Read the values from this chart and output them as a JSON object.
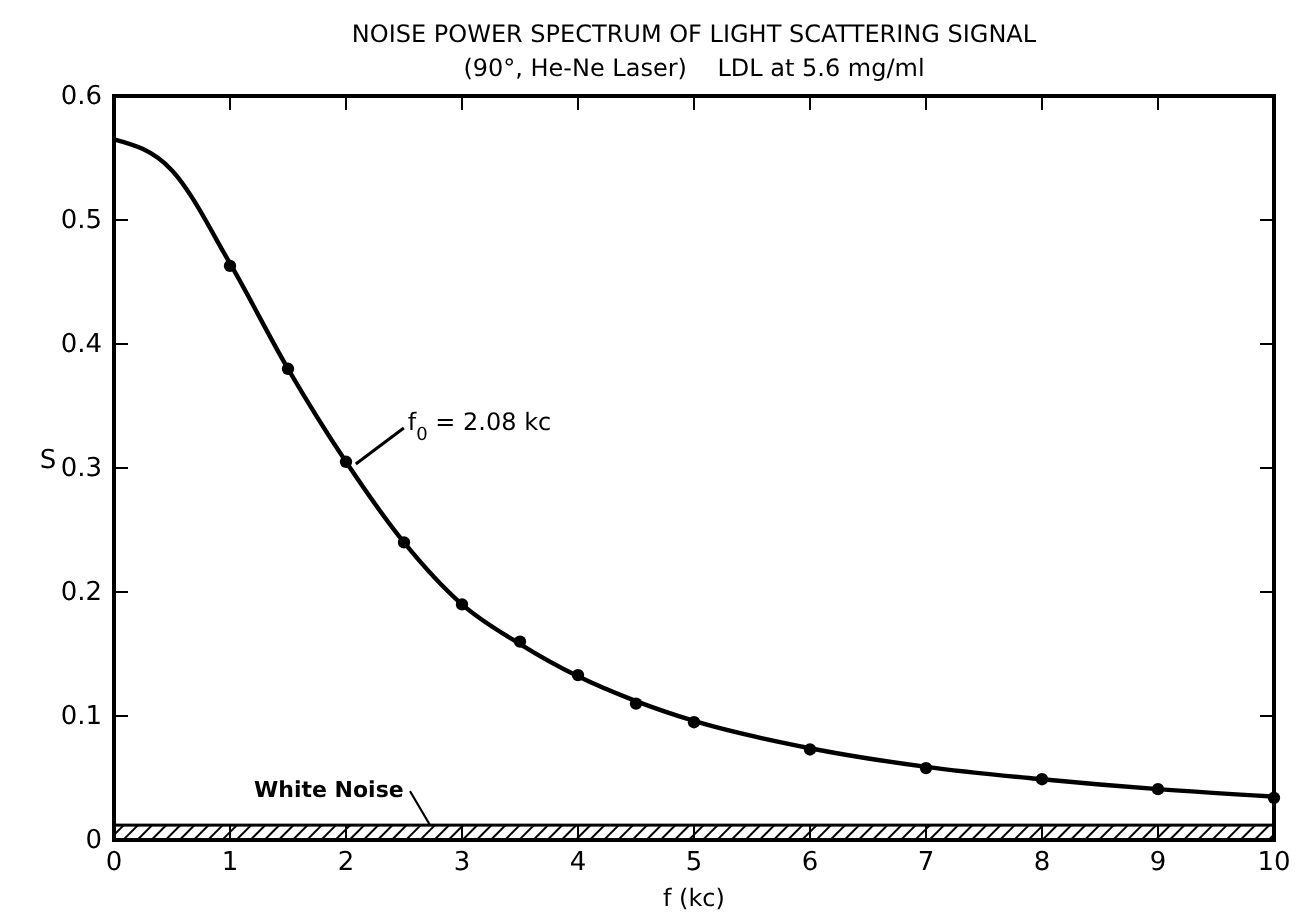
{
  "chart_data": {
    "type": "line",
    "title": "NOISE POWER SPECTRUM OF LIGHT SCATTERING SIGNAL",
    "subtitle": "(90°, He-Ne Laser)    LDL at 5.6 mg/ml",
    "xlabel": "f (kc)",
    "ylabel": "S",
    "xlim": [
      0,
      10
    ],
    "xticks": [
      0,
      1,
      2,
      3,
      4,
      5,
      6,
      7,
      8,
      9,
      10
    ],
    "ylim": [
      0,
      0.6
    ],
    "yticks": [
      0,
      0.1,
      0.2,
      0.3,
      0.4,
      0.5,
      0.6
    ],
    "grid": false,
    "series": [
      {
        "type": "line",
        "color": "#000000",
        "marker": "none",
        "line_style": "solid",
        "x": [
          0,
          0.5,
          1,
          1.5,
          2,
          2.5,
          3,
          3.5,
          4,
          4.5,
          5,
          6,
          7,
          8,
          9,
          10
        ],
        "values": [
          0.565,
          0.54,
          0.465,
          0.38,
          0.305,
          0.24,
          0.19,
          0.158,
          0.132,
          0.112,
          0.096,
          0.074,
          0.059,
          0.049,
          0.041,
          0.035
        ]
      },
      {
        "type": "scatter",
        "color": "#000000",
        "marker": "circle",
        "x": [
          1,
          1.5,
          2,
          2.5,
          3,
          3.5,
          4,
          4.5,
          5,
          6,
          7,
          8,
          9,
          10
        ],
        "values": [
          0.463,
          0.38,
          0.305,
          0.24,
          0.19,
          0.16,
          0.133,
          0.11,
          0.095,
          0.073,
          0.058,
          0.049,
          0.041,
          0.034
        ]
      }
    ],
    "bands": [
      {
        "axis": "y",
        "from": 0,
        "to": 0.012,
        "label": "White Noise",
        "color": "#000000"
      }
    ],
    "annotations": [
      {
        "text": "f$_{0}$ = 2.08 kc",
        "x": 2.05,
        "y": 0.3
      }
    ]
  }
}
